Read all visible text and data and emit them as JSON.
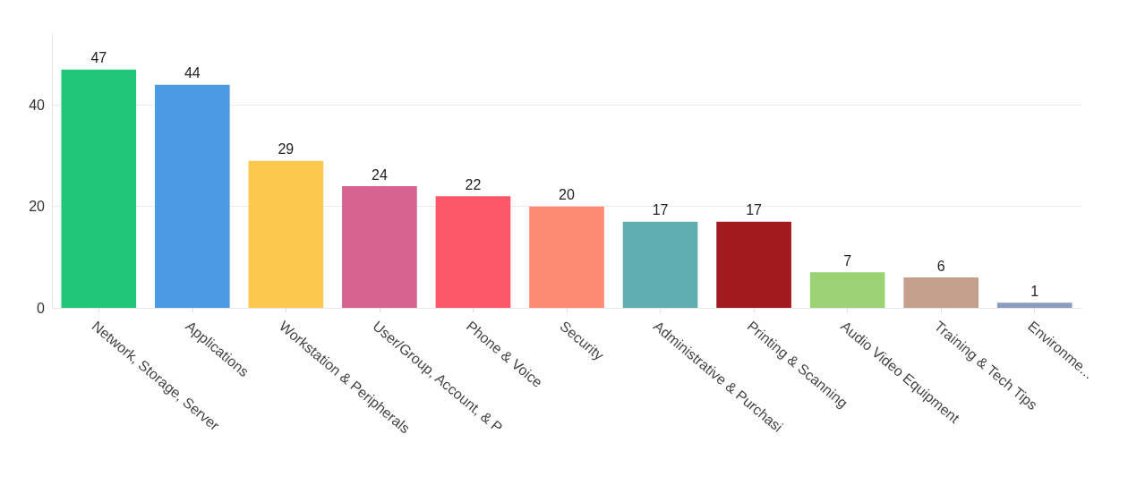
{
  "chart_data": {
    "type": "bar",
    "categories": [
      "Network, Storage, Server",
      "Applications",
      "Workstation & Peripherals",
      "User/Group, Account, & P",
      "Phone & Voice",
      "Security",
      "Administrative & Purchasi",
      "Printing & Scanning",
      "Audio Video Equipment",
      "Training & Tech Tips",
      "Environme..."
    ],
    "values": [
      47,
      44,
      29,
      24,
      22,
      20,
      17,
      17,
      7,
      6,
      1
    ],
    "colors": [
      "#20c777",
      "#4a9ae6",
      "#fcc84d",
      "#d6628f",
      "#fe5669",
      "#fd8a72",
      "#60aeb0",
      "#a2191e",
      "#9bd274",
      "#c4a08c",
      "#8c9bc0"
    ],
    "ylim": [
      0,
      54
    ],
    "yticks": [
      0,
      20,
      40
    ],
    "grid": "y",
    "data_labels": true
  }
}
